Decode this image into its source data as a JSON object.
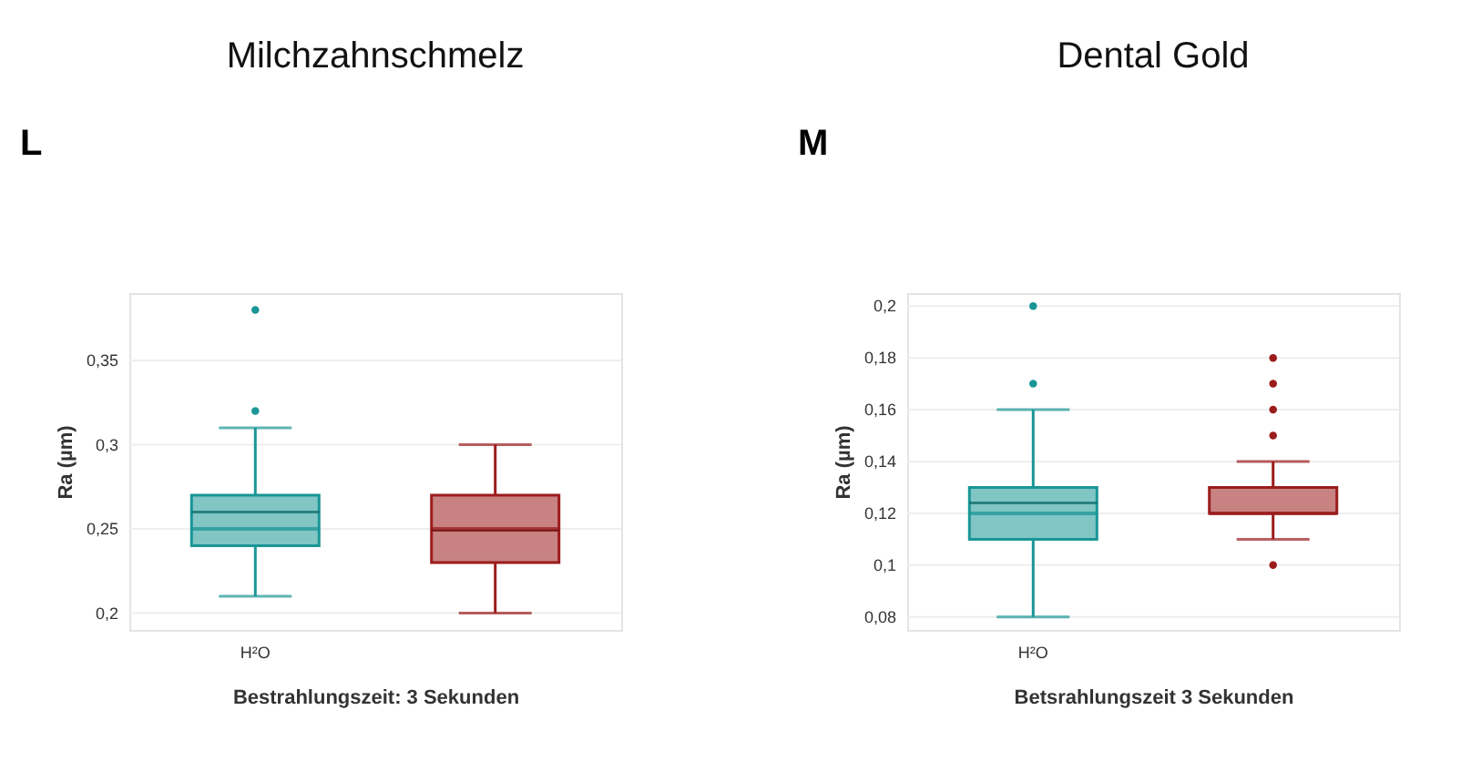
{
  "chart_data": [
    {
      "type": "box",
      "title": "Milchzahnschmelz",
      "annotations": [
        "L"
      ],
      "xlabel": "Bestrahlungszeit: 3 Sekunden",
      "ylabel": "Ra (µm)",
      "categories": [
        "H²O",
        null
      ],
      "colors": [
        "#1a9696",
        "#9b1c1c"
      ],
      "boxes": [
        {
          "low": 0.21,
          "q1": 0.24,
          "median": 0.25,
          "q3": 0.27,
          "high": 0.31,
          "mean": 0.26,
          "outliers": [
            0.32,
            0.38
          ]
        },
        {
          "low": 0.2,
          "q1": 0.23,
          "median": 0.25,
          "q3": 0.27,
          "high": 0.3,
          "mean": 0.249
        }
      ],
      "ylim": [
        0.19,
        0.39
      ],
      "yticks": [
        {
          "value": 0.2,
          "label": "0,2"
        },
        {
          "value": 0.25,
          "label": "0,25"
        },
        {
          "value": 0.3,
          "label": "0,3"
        },
        {
          "value": 0.35,
          "label": "0,35"
        }
      ],
      "grid": "y"
    },
    {
      "type": "box",
      "title": "Dental Gold",
      "annotations": [
        "M"
      ],
      "xlabel": "Betsrahlungszeit 3 Sekunden",
      "ylabel": "Ra (µm)",
      "categories": [
        "H²O",
        null
      ],
      "colors": [
        "#1a9696",
        "#9b1c1c"
      ],
      "boxes": [
        {
          "low": 0.08,
          "q1": 0.11,
          "median": 0.12,
          "q3": 0.13,
          "high": 0.16,
          "mean": 0.124,
          "outliers": [
            0.17,
            0.2
          ]
        },
        {
          "low": 0.11,
          "q1": 0.12,
          "median": 0.12,
          "q3": 0.13,
          "high": 0.14,
          "outliers": [
            0.1,
            0.15,
            0.16,
            0.17,
            0.18
          ]
        }
      ],
      "ylim": [
        0.075,
        0.205
      ],
      "yticks": [
        {
          "value": 0.08,
          "label": "0,08"
        },
        {
          "value": 0.1,
          "label": "0,1"
        },
        {
          "value": 0.12,
          "label": "0,12"
        },
        {
          "value": 0.14,
          "label": "0,14"
        },
        {
          "value": 0.16,
          "label": "0,16"
        },
        {
          "value": 0.18,
          "label": "0,18"
        },
        {
          "value": 0.2,
          "label": "0,2"
        }
      ],
      "grid": "y"
    }
  ]
}
